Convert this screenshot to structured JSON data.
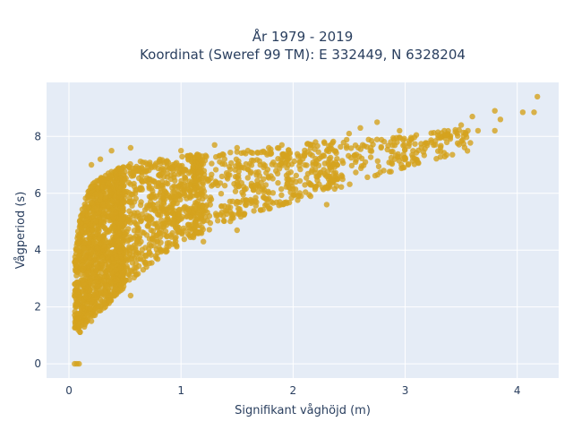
{
  "chart_data": {
    "type": "scatter",
    "title_line1": "År 1979 - 2019",
    "title_line2": "Koordinat (Sweref 99 TM): E 332449, N 6328204",
    "xlabel": "Signifikant våghöjd (m)",
    "ylabel": "Vågperiod (s)",
    "xlim": [
      -0.2,
      4.37
    ],
    "ylim": [
      -0.5,
      9.9
    ],
    "xticks": [
      "0",
      "1",
      "2",
      "3",
      "4"
    ],
    "yticks": [
      "0",
      "2",
      "4",
      "6",
      "8"
    ],
    "grid": true,
    "legend": "none",
    "colors": {
      "marker": "#d4a21e",
      "plot_bg": "#e5ecf6",
      "grid": "#ffffff",
      "text": "#2a3f5f"
    },
    "series": [
      {
        "values_note_free": true,
        "envelope": {
          "h": [
            0.05,
            0.1,
            0.15,
            0.2,
            0.3,
            0.4,
            0.5,
            0.6,
            0.8,
            1.0,
            1.2,
            1.5,
            2.0,
            2.5,
            3.0,
            3.5,
            4.0
          ],
          "t_min": [
            1.1,
            1.1,
            1.3,
            1.6,
            1.9,
            2.3,
            2.7,
            3.1,
            3.7,
            4.2,
            4.6,
            5.1,
            5.7,
            6.3,
            6.9,
            7.4,
            8.0
          ],
          "t_max": [
            3.8,
            5.2,
            5.9,
            6.3,
            6.6,
            6.8,
            7.0,
            7.1,
            7.2,
            7.3,
            7.4,
            7.5,
            7.7,
            7.9,
            8.0,
            8.3,
            8.6
          ]
        },
        "points": [
          [
            0.05,
            0.0
          ],
          [
            0.07,
            0.0
          ],
          [
            0.09,
            0.0
          ],
          [
            0.55,
            7.6
          ],
          [
            0.38,
            7.5
          ],
          [
            0.2,
            7.0
          ],
          [
            0.28,
            7.2
          ],
          [
            1.0,
            7.5
          ],
          [
            1.3,
            7.7
          ],
          [
            1.5,
            7.6
          ],
          [
            1.9,
            7.7
          ],
          [
            2.2,
            7.8
          ],
          [
            2.5,
            8.1
          ],
          [
            2.6,
            8.3
          ],
          [
            2.75,
            8.5
          ],
          [
            2.95,
            8.2
          ],
          [
            3.1,
            8.05
          ],
          [
            3.35,
            8.2
          ],
          [
            3.5,
            8.4
          ],
          [
            3.6,
            8.7
          ],
          [
            3.8,
            8.9
          ],
          [
            3.85,
            8.6
          ],
          [
            4.05,
            8.85
          ],
          [
            4.15,
            8.85
          ],
          [
            4.18,
            9.4
          ],
          [
            3.65,
            8.2
          ],
          [
            3.8,
            8.2
          ],
          [
            1.5,
            4.7
          ],
          [
            1.2,
            4.3
          ],
          [
            2.3,
            5.6
          ],
          [
            0.55,
            2.4
          ],
          [
            0.2,
            1.5
          ]
        ]
      }
    ]
  }
}
